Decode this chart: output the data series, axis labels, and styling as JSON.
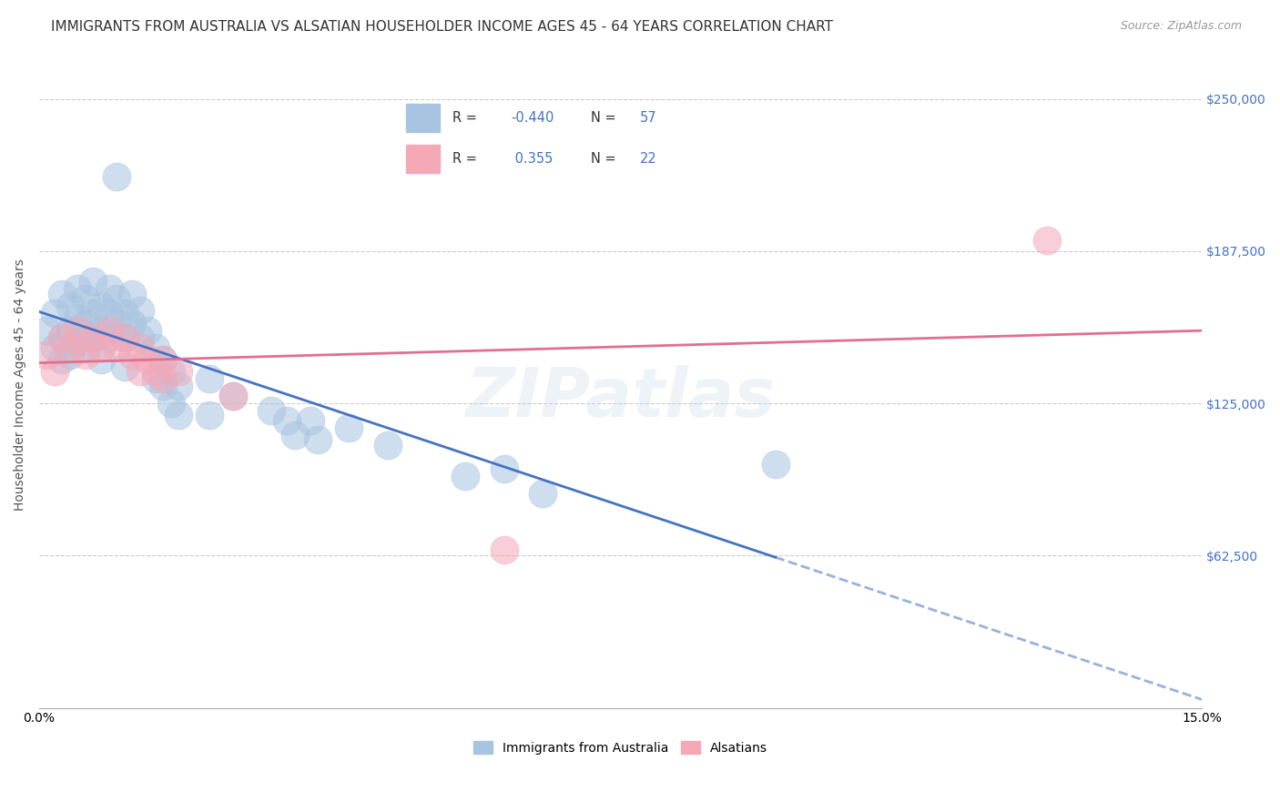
{
  "title": "IMMIGRANTS FROM AUSTRALIA VS ALSATIAN HOUSEHOLDER INCOME AGES 45 - 64 YEARS CORRELATION CHART",
  "source": "Source: ZipAtlas.com",
  "ylabel": "Householder Income Ages 45 - 64 years",
  "ytick_labels": [
    "$62,500",
    "$125,000",
    "$187,500",
    "$250,000"
  ],
  "ytick_values": [
    62500,
    125000,
    187500,
    250000
  ],
  "xmin": 0.0,
  "xmax": 0.15,
  "ymin": 0,
  "ymax": 265000,
  "watermark": "ZIPatlas",
  "legend_R_label": "R = ",
  "legend_N_label": "N = ",
  "legend_blue_R": "-0.440",
  "legend_blue_N": "57",
  "legend_pink_R": "0.355",
  "legend_pink_N": "22",
  "blue_color": "#a8c4e0",
  "pink_color": "#f4a8b8",
  "blue_line_color": "#4472c4",
  "pink_line_color": "#e07090",
  "text_blue_color": "#4472c4",
  "label_color": "#333333",
  "ytick_color": "#4472c4",
  "blue_scatter": [
    [
      0.001,
      155000
    ],
    [
      0.002,
      148000
    ],
    [
      0.002,
      162000
    ],
    [
      0.003,
      170000
    ],
    [
      0.003,
      152000
    ],
    [
      0.003,
      143000
    ],
    [
      0.004,
      165000
    ],
    [
      0.004,
      155000
    ],
    [
      0.004,
      145000
    ],
    [
      0.005,
      172000
    ],
    [
      0.005,
      160000
    ],
    [
      0.005,
      150000
    ],
    [
      0.006,
      168000
    ],
    [
      0.006,
      158000
    ],
    [
      0.006,
      148000
    ],
    [
      0.007,
      175000
    ],
    [
      0.007,
      162000
    ],
    [
      0.007,
      152000
    ],
    [
      0.008,
      165000
    ],
    [
      0.008,
      155000
    ],
    [
      0.008,
      143000
    ],
    [
      0.009,
      172000
    ],
    [
      0.009,
      162000
    ],
    [
      0.009,
      152000
    ],
    [
      0.01,
      168000
    ],
    [
      0.01,
      158000
    ],
    [
      0.01,
      218000
    ],
    [
      0.011,
      162000
    ],
    [
      0.011,
      152000
    ],
    [
      0.011,
      140000
    ],
    [
      0.012,
      170000
    ],
    [
      0.012,
      158000
    ],
    [
      0.013,
      163000
    ],
    [
      0.013,
      152000
    ],
    [
      0.014,
      155000
    ],
    [
      0.015,
      148000
    ],
    [
      0.015,
      135000
    ],
    [
      0.016,
      143000
    ],
    [
      0.016,
      132000
    ],
    [
      0.017,
      138000
    ],
    [
      0.017,
      125000
    ],
    [
      0.018,
      132000
    ],
    [
      0.018,
      120000
    ],
    [
      0.022,
      135000
    ],
    [
      0.022,
      120000
    ],
    [
      0.025,
      128000
    ],
    [
      0.03,
      122000
    ],
    [
      0.032,
      118000
    ],
    [
      0.033,
      112000
    ],
    [
      0.035,
      118000
    ],
    [
      0.036,
      110000
    ],
    [
      0.04,
      115000
    ],
    [
      0.045,
      108000
    ],
    [
      0.055,
      95000
    ],
    [
      0.06,
      98000
    ],
    [
      0.065,
      88000
    ],
    [
      0.095,
      100000
    ]
  ],
  "pink_scatter": [
    [
      0.001,
      145000
    ],
    [
      0.002,
      138000
    ],
    [
      0.003,
      152000
    ],
    [
      0.004,
      148000
    ],
    [
      0.005,
      155000
    ],
    [
      0.006,
      145000
    ],
    [
      0.007,
      152000
    ],
    [
      0.008,
      148000
    ],
    [
      0.009,
      155000
    ],
    [
      0.01,
      148000
    ],
    [
      0.011,
      152000
    ],
    [
      0.012,
      145000
    ],
    [
      0.013,
      148000
    ],
    [
      0.013,
      138000
    ],
    [
      0.014,
      143000
    ],
    [
      0.015,
      138000
    ],
    [
      0.016,
      143000
    ],
    [
      0.016,
      135000
    ],
    [
      0.018,
      138000
    ],
    [
      0.025,
      128000
    ],
    [
      0.06,
      65000
    ],
    [
      0.13,
      192000
    ]
  ],
  "dot_size": 500,
  "title_fontsize": 11,
  "axis_label_fontsize": 10,
  "tick_fontsize": 10,
  "source_fontsize": 9,
  "grid_color": "#cccccc",
  "background_color": "#ffffff"
}
